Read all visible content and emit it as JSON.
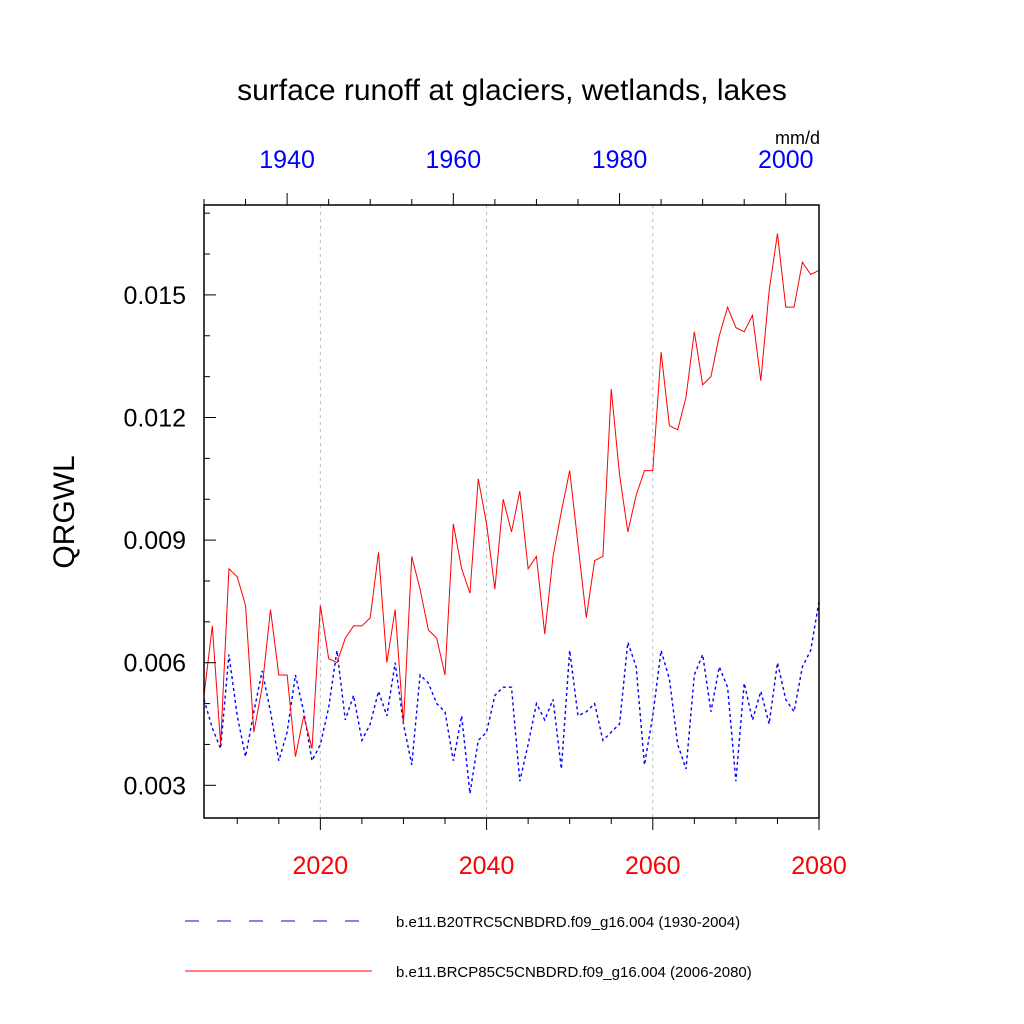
{
  "chart_data": {
    "type": "line",
    "title": "surface runoff at glaciers, wetlands, lakes",
    "ylabel": "QRGWL",
    "units": "mm/d",
    "ylim": [
      0.0022,
      0.0172
    ],
    "yticks": [
      0.003,
      0.006,
      0.009,
      0.012,
      0.015
    ],
    "ytick_labels": [
      "0.003",
      "0.006",
      "0.009",
      "0.012",
      "0.015"
    ],
    "grid": "vertical dashed at labeled bottom-axis years",
    "bottom_axis": {
      "xlim": [
        2006,
        2080
      ],
      "ticks": [
        2020,
        2040,
        2060,
        2080
      ],
      "tick_labels": [
        "2020",
        "2040",
        "2060",
        "2080"
      ],
      "color": "#ff0000"
    },
    "top_axis": {
      "xlim": [
        1930,
        2004
      ],
      "ticks": [
        1940,
        1960,
        1980,
        2000
      ],
      "tick_labels": [
        "1940",
        "1960",
        "1980",
        "2000"
      ],
      "color": "#0000ff"
    },
    "series": [
      {
        "name": "b.e11.B20TRC5CNBDRD.f09_g16.004 (1930-2004)",
        "axis": "top",
        "color": "#0000ff",
        "dash": "dashed",
        "x_start": 1930,
        "values": [
          0.0051,
          0.0044,
          0.0039,
          0.0062,
          0.0047,
          0.0037,
          0.0048,
          0.0058,
          0.0048,
          0.0036,
          0.0043,
          0.0057,
          0.0048,
          0.0036,
          0.004,
          0.0049,
          0.0063,
          0.0046,
          0.0052,
          0.0041,
          0.0045,
          0.0053,
          0.0047,
          0.006,
          0.0045,
          0.0035,
          0.0057,
          0.0055,
          0.005,
          0.0048,
          0.0036,
          0.0047,
          0.0028,
          0.0041,
          0.0043,
          0.0052,
          0.0054,
          0.0054,
          0.0031,
          0.004,
          0.005,
          0.0046,
          0.0051,
          0.0034,
          0.0063,
          0.0047,
          0.0048,
          0.005,
          0.0041,
          0.0043,
          0.0045,
          0.0065,
          0.0059,
          0.0035,
          0.0047,
          0.0063,
          0.0056,
          0.004,
          0.0034,
          0.0057,
          0.0062,
          0.0048,
          0.0059,
          0.0054,
          0.0031,
          0.0055,
          0.0046,
          0.0053,
          0.0045,
          0.006,
          0.0051,
          0.0048,
          0.0059,
          0.0063,
          0.0075
        ]
      },
      {
        "name": "b.e11.BRCP85C5CNBDRD.f09_g16.004 (2006-2080)",
        "axis": "bottom",
        "color": "#ff0000",
        "dash": "solid",
        "x_start": 2006,
        "values": [
          0.0052,
          0.0069,
          0.004,
          0.0083,
          0.0081,
          0.0074,
          0.0043,
          0.0054,
          0.0073,
          0.0057,
          0.0057,
          0.0037,
          0.0047,
          0.0039,
          0.0074,
          0.0061,
          0.006,
          0.0066,
          0.0069,
          0.0069,
          0.0071,
          0.0087,
          0.006,
          0.0073,
          0.0045,
          0.0086,
          0.0078,
          0.0068,
          0.0066,
          0.0057,
          0.0094,
          0.0083,
          0.0077,
          0.0105,
          0.0094,
          0.0078,
          0.01,
          0.0092,
          0.0102,
          0.0083,
          0.0086,
          0.0067,
          0.0086,
          0.0097,
          0.0107,
          0.0089,
          0.0071,
          0.0085,
          0.0086,
          0.0127,
          0.0106,
          0.0092,
          0.0101,
          0.0107,
          0.0107,
          0.0136,
          0.0118,
          0.0117,
          0.0125,
          0.0141,
          0.0128,
          0.013,
          0.014,
          0.0147,
          0.0142,
          0.0141,
          0.0145,
          0.0129,
          0.0151,
          0.0165,
          0.0147,
          0.0147,
          0.0158,
          0.0155,
          0.0156
        ]
      }
    ]
  }
}
